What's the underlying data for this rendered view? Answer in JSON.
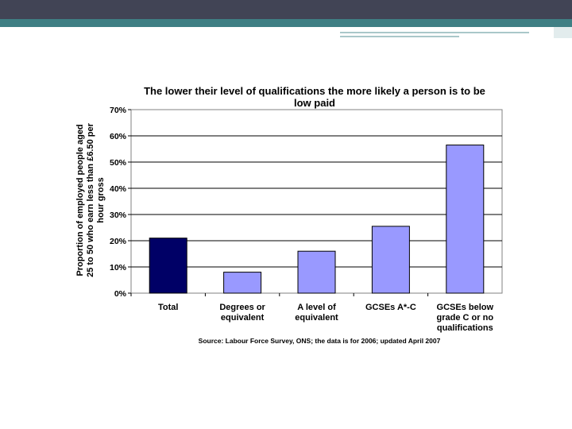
{
  "colors": {
    "total_bar": "#000066",
    "other_bar": "#9999ff",
    "header": "#414455",
    "band": "#3f7f84"
  },
  "chart_data": {
    "type": "bar",
    "title_lines": [
      "The lower their level of qualifications the more likely a person is to be",
      "low paid"
    ],
    "ylabel_lines": [
      "Proportion of employed people aged",
      "25 to 50 who earn less than £6.50 per",
      "hour gross"
    ],
    "xlabel": "",
    "ylim": [
      0,
      0.7
    ],
    "yticks": [
      "0%",
      "10%",
      "20%",
      "30%",
      "40%",
      "50%",
      "60%",
      "70%"
    ],
    "categories": [
      [
        "Total"
      ],
      [
        "Degrees or",
        "equivalent"
      ],
      [
        "A level of",
        "equivalent"
      ],
      [
        "GCSEs A*-C"
      ],
      [
        "GCSEs below",
        "grade C or no",
        "qualifications"
      ]
    ],
    "values": [
      0.21,
      0.08,
      0.16,
      0.255,
      0.565
    ],
    "grid": true,
    "source": "Source: Labour Force Survey, ONS; the data is for 2006; updated April 2007"
  }
}
